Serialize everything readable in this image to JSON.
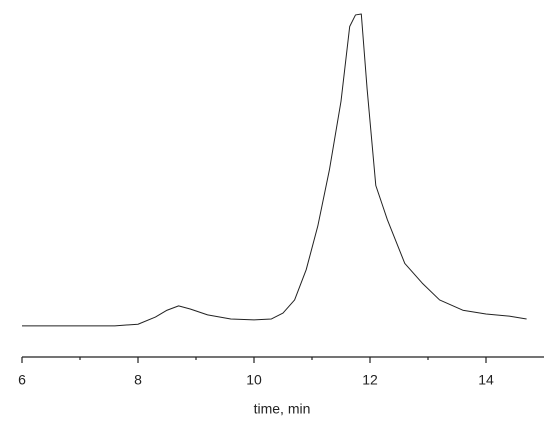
{
  "chart_data": {
    "type": "line",
    "xlabel": "time, min",
    "x": [
      6.0,
      7.6,
      8.0,
      8.3,
      8.5,
      8.7,
      8.9,
      9.2,
      9.6,
      10.0,
      10.3,
      10.5,
      10.7,
      10.9,
      11.1,
      11.3,
      11.5,
      11.65,
      11.75,
      11.85,
      11.95,
      12.1,
      12.3,
      12.6,
      12.9,
      13.2,
      13.6,
      14.0,
      14.4,
      14.7
    ],
    "series": [
      {
        "color": "#222222",
        "values": [
          0,
          0,
          0.005,
          0.028,
          0.05,
          0.064,
          0.054,
          0.035,
          0.022,
          0.019,
          0.022,
          0.041,
          0.083,
          0.18,
          0.32,
          0.5,
          0.72,
          0.96,
          0.997,
          1.0,
          0.76,
          0.45,
          0.34,
          0.2,
          0.137,
          0.083,
          0.05,
          0.038,
          0.031,
          0.022
        ]
      }
    ],
    "xlim": [
      6,
      15
    ],
    "xticks": [
      6,
      8,
      10,
      12,
      14
    ],
    "xminor_ticks": [
      7,
      9,
      11,
      13
    ],
    "ylim": [
      -0.1,
      1
    ],
    "grid": false
  }
}
